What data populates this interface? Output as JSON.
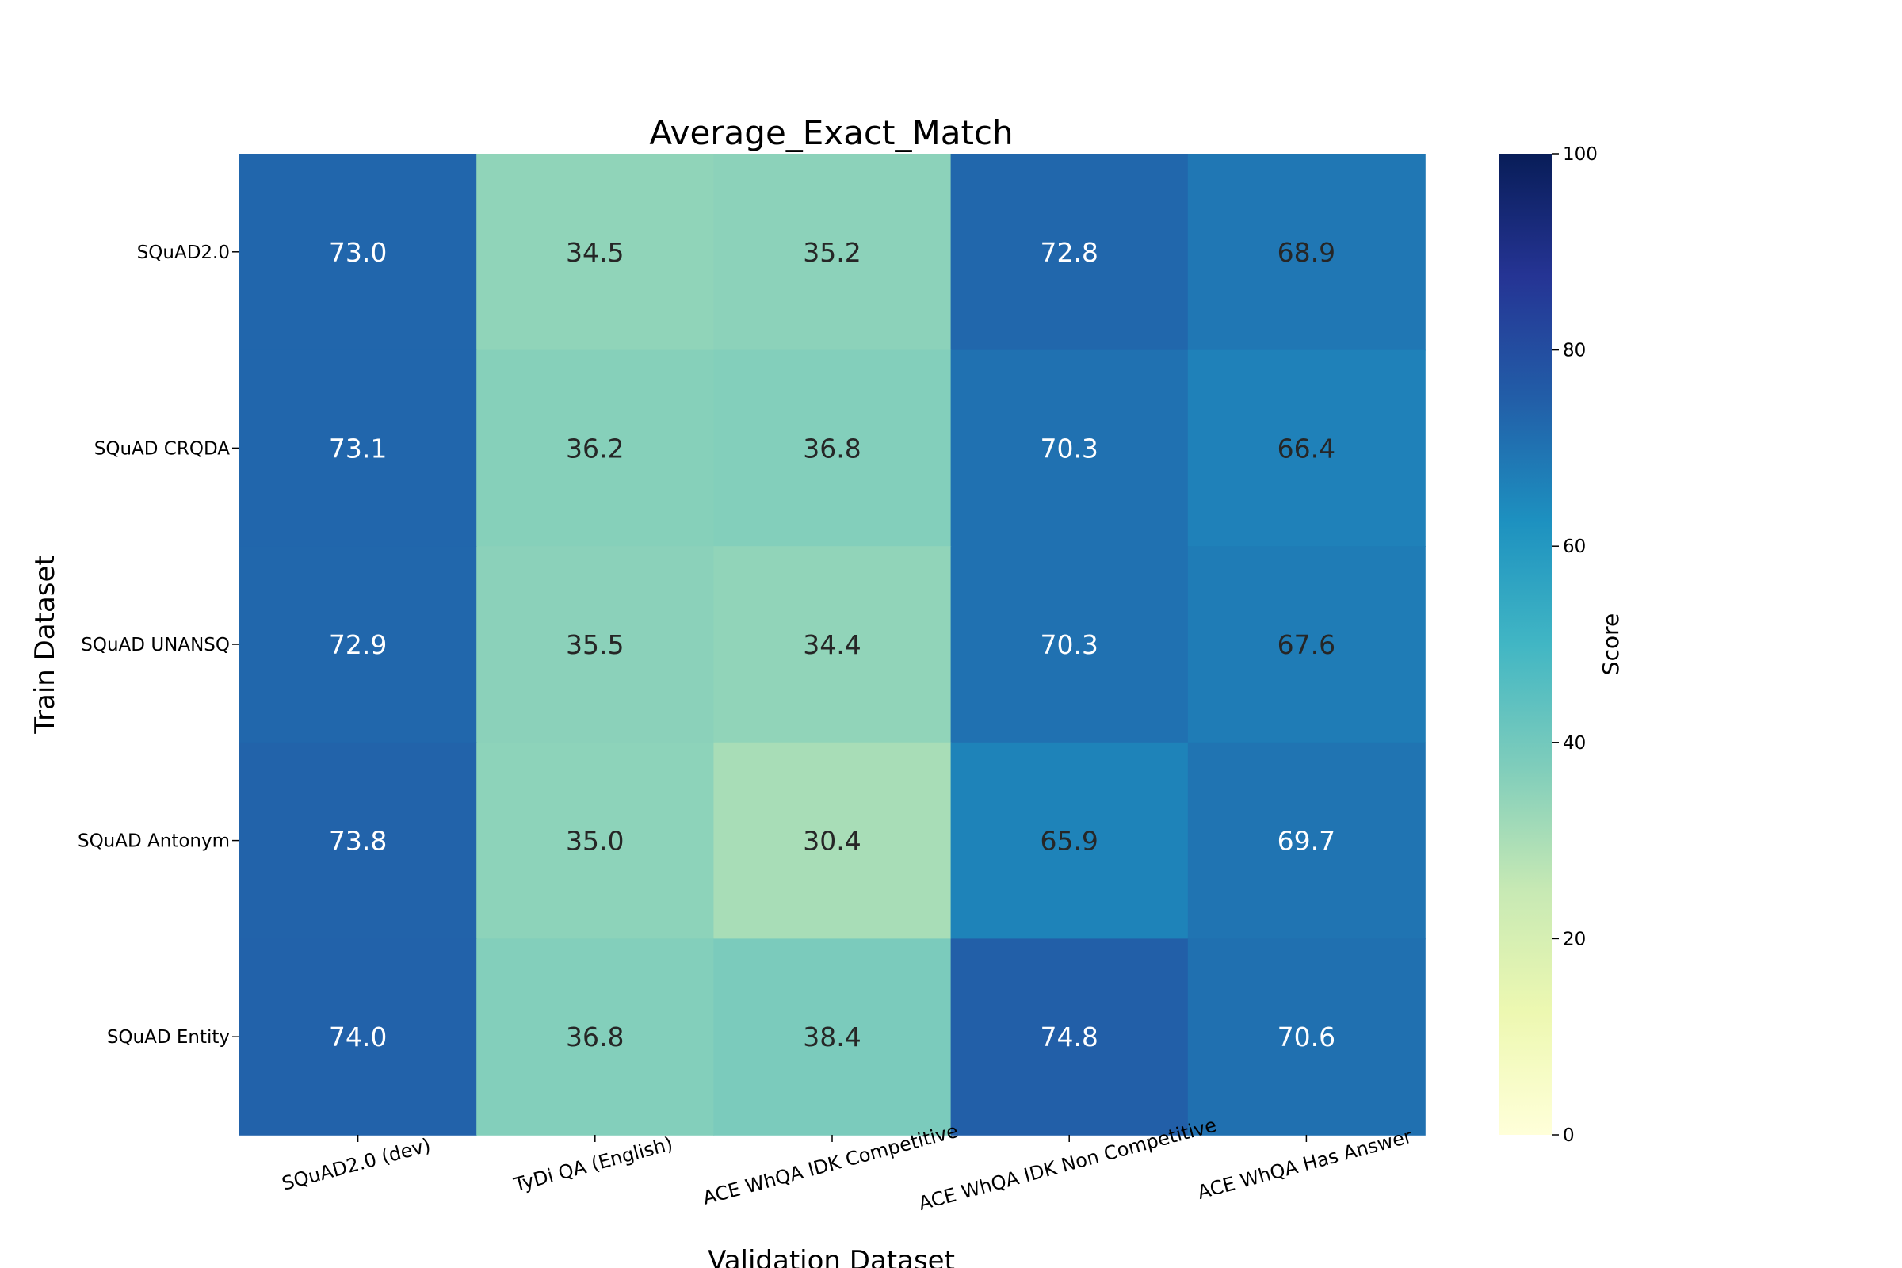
{
  "chart_data": {
    "type": "heatmap",
    "title": "Average_Exact_Match",
    "xlabel": "Validation Dataset",
    "ylabel": "Train Dataset",
    "columns": [
      "SQuAD2.0 (dev)",
      "TyDi QA (English)",
      "ACE WhQA IDK Competitive",
      "ACE WhQA IDK Non Competitive",
      "ACE WhQA Has Answer"
    ],
    "rows": [
      "SQuAD2.0",
      "SQuAD CRQDA",
      "SQuAD UNANSQ",
      "SQuAD Antonym",
      "SQuAD Entity"
    ],
    "values": [
      [
        73.0,
        34.5,
        35.2,
        72.8,
        68.9
      ],
      [
        73.1,
        36.2,
        36.8,
        70.3,
        66.4
      ],
      [
        72.9,
        35.5,
        34.4,
        70.3,
        67.6
      ],
      [
        73.8,
        35.0,
        30.4,
        65.9,
        69.7
      ],
      [
        74.0,
        36.8,
        38.4,
        74.8,
        70.6
      ]
    ],
    "colorbar": {
      "label": "Score",
      "min": 0,
      "max": 100,
      "ticks": [
        0,
        20,
        40,
        60,
        80,
        100
      ]
    },
    "colormap": "YlGnBu"
  }
}
